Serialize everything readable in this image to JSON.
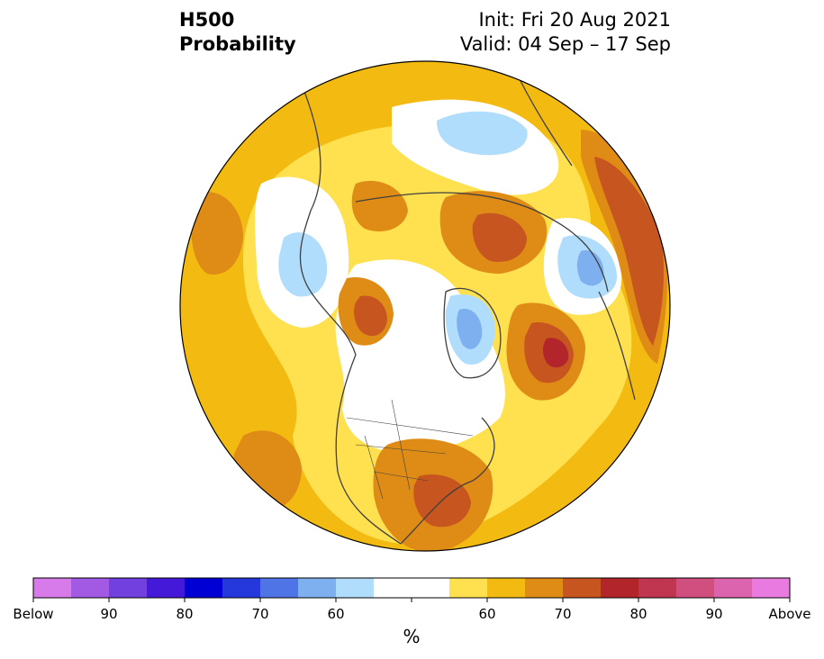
{
  "header": {
    "title_line1": "H500",
    "title_line2": "Probability",
    "init_text": "Init: Fri 20 Aug 2021",
    "valid_text": "Valid: 04 Sep – 17 Sep"
  },
  "colorbar": {
    "units": "%",
    "colors": [
      "#d77aea",
      "#a259e3",
      "#7140df",
      "#4419d8",
      "#0000d4",
      "#2438db",
      "#4f74e6",
      "#7eb0f0",
      "#b0ddfb",
      "#ffffff",
      "#ffffff",
      "#ffe04f",
      "#f3bb11",
      "#df8c17",
      "#c75520",
      "#b2262b",
      "#c0354f",
      "#d04f7e",
      "#dc63ad",
      "#e97be0"
    ],
    "ticks": [
      "Below",
      "90",
      "80",
      "70",
      "60",
      "60",
      "70",
      "80",
      "90",
      "Above"
    ]
  },
  "map": {
    "projection": "north-polar-stereographic",
    "background_color": "#f3bb11"
  }
}
